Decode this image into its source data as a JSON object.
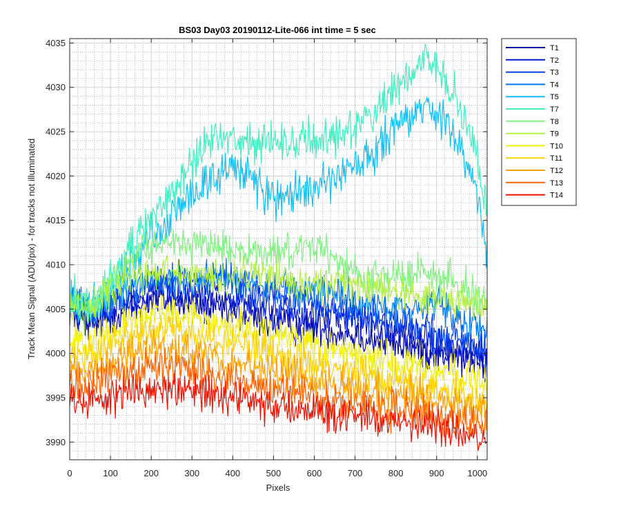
{
  "chart_data": {
    "type": "line",
    "title": "BS03 Day03 20190112-Lite-066 int time = 5 sec",
    "xlabel": "Pixels",
    "ylabel": "Track Mean Signal (ADU/pix) - for tracks not illuminated",
    "xlim": [
      0,
      1024
    ],
    "ylim": [
      3988,
      4035.5
    ],
    "x_ticks": [
      0,
      100,
      200,
      300,
      400,
      500,
      600,
      700,
      800,
      900,
      1000
    ],
    "y_ticks": [
      3990,
      3995,
      4000,
      4005,
      4010,
      4015,
      4020,
      4025,
      4030,
      4035
    ],
    "grid": "major and minor",
    "legend_position": "outside right",
    "series": [
      {
        "name": "T1",
        "color": "#0000a8",
        "x": [
          0,
          50,
          100,
          150,
          200,
          250,
          300,
          350,
          400,
          450,
          500,
          550,
          600,
          650,
          700,
          750,
          800,
          850,
          900,
          950,
          1000,
          1024
        ],
        "values": [
          4005,
          4003,
          4004,
          4005,
          4006,
          4006,
          4005.5,
          4005,
          4004.5,
          4004,
          4003.5,
          4003,
          4003,
          4002.5,
          4002,
          4001.5,
          4001,
          4000.5,
          4000,
          3999.5,
          3999,
          3998.5
        ]
      },
      {
        "name": "T2",
        "color": "#0018d0",
        "x": [
          0,
          50,
          100,
          150,
          200,
          250,
          300,
          350,
          400,
          450,
          500,
          550,
          600,
          650,
          700,
          750,
          800,
          850,
          900,
          950,
          1000,
          1024
        ],
        "values": [
          4005,
          4004,
          4005,
          4006,
          4007,
          4007,
          4006.5,
          4007,
          4006,
          4005.5,
          4005,
          4004.5,
          4004,
          4004,
          4003.5,
          4003,
          4002.5,
          4001.5,
          4001,
          4000.5,
          4000,
          3999.5
        ]
      },
      {
        "name": "T3",
        "color": "#0040f0",
        "x": [
          0,
          50,
          100,
          150,
          200,
          250,
          300,
          350,
          400,
          450,
          500,
          550,
          600,
          650,
          700,
          750,
          800,
          850,
          900,
          950,
          1000,
          1024
        ],
        "values": [
          4005.5,
          4004.5,
          4005.5,
          4007,
          4008,
          4008,
          4008,
          4009,
          4008,
          4007,
          4006.5,
          4006,
          4006,
          4005,
          4004.5,
          4004,
          4003.5,
          4003,
          4002,
          4001.5,
          4001,
          4000.5
        ]
      },
      {
        "name": "T4",
        "color": "#0078f0",
        "x": [
          0,
          50,
          100,
          150,
          200,
          250,
          300,
          350,
          400,
          450,
          500,
          550,
          600,
          650,
          700,
          750,
          800,
          850,
          900,
          950,
          1000,
          1024
        ],
        "values": [
          4006,
          4005,
          4006,
          4007.5,
          4008.5,
          4008,
          4008,
          4009,
          4008.5,
          4008,
          4007.5,
          4007,
          4007,
          4006.5,
          4006,
          4005.5,
          4005,
          4005,
          4006,
          4004,
          4003,
          4002.5
        ]
      },
      {
        "name": "T5",
        "color": "#10c0f8",
        "x": [
          0,
          50,
          100,
          150,
          200,
          250,
          300,
          350,
          400,
          450,
          500,
          550,
          600,
          650,
          700,
          750,
          800,
          850,
          880,
          900,
          950,
          1000,
          1024
        ],
        "values": [
          4006,
          4005,
          4007,
          4010,
          4013,
          4015.5,
          4018,
          4020,
          4021,
          4019.5,
          4018,
          4017.5,
          4018.5,
          4019.5,
          4021,
          4022.5,
          4025.5,
          4027,
          4028,
          4027,
          4024,
          4018,
          4010.5
        ]
      },
      {
        "name": "T7",
        "color": "#40f0c0",
        "x": [
          0,
          50,
          100,
          150,
          200,
          250,
          300,
          350,
          400,
          450,
          500,
          550,
          600,
          650,
          700,
          750,
          800,
          850,
          880,
          900,
          950,
          1000,
          1024
        ],
        "values": [
          4006,
          4005.5,
          4008,
          4012,
          4015,
          4018,
          4021.5,
          4024.5,
          4024.5,
          4023.5,
          4023.5,
          4024,
          4024,
          4024.5,
          4026,
          4027,
          4030.5,
          4032.5,
          4033.5,
          4032.5,
          4029,
          4022,
          4015
        ]
      },
      {
        "name": "T8",
        "color": "#80f080",
        "x": [
          0,
          50,
          100,
          150,
          200,
          250,
          300,
          350,
          400,
          450,
          500,
          550,
          600,
          650,
          700,
          750,
          800,
          850,
          900,
          950,
          1000,
          1024
        ],
        "values": [
          4006,
          4005.5,
          4008,
          4010.5,
          4012,
          4012,
          4012,
          4012.5,
          4012,
          4011.5,
          4011.5,
          4011.5,
          4012,
          4011,
          4009,
          4008.5,
          4008.5,
          4009,
          4009,
          4008,
          4006.5,
          4005.5
        ]
      },
      {
        "name": "T9",
        "color": "#b0f040",
        "x": [
          0,
          50,
          100,
          150,
          200,
          250,
          300,
          350,
          400,
          450,
          500,
          550,
          600,
          650,
          700,
          750,
          800,
          850,
          900,
          950,
          1000,
          1024
        ],
        "values": [
          4005,
          4004.5,
          4007,
          4008.5,
          4009,
          4009,
          4009,
          4009,
          4008.5,
          4008.5,
          4008.5,
          4008,
          4008,
          4008,
          4007.5,
          4007,
          4007,
          4006.5,
          4006,
          4006,
          4005.5,
          4005
        ]
      },
      {
        "name": "T10",
        "color": "#f0f000",
        "x": [
          0,
          50,
          100,
          150,
          200,
          250,
          300,
          350,
          400,
          450,
          500,
          550,
          600,
          650,
          700,
          750,
          800,
          850,
          900,
          950,
          1000,
          1024
        ],
        "values": [
          4001.5,
          4001,
          4002.5,
          4003.5,
          4004.5,
          4004.5,
          4004,
          4003.5,
          4003,
          4002.5,
          4002,
          4001.5,
          4001,
          4000.5,
          4000,
          3999.5,
          3999,
          3998.5,
          3998,
          3997.5,
          3997,
          3996.5
        ]
      },
      {
        "name": "T11",
        "color": "#ffd000",
        "x": [
          0,
          50,
          100,
          150,
          200,
          250,
          300,
          350,
          400,
          450,
          500,
          550,
          600,
          650,
          700,
          750,
          800,
          850,
          900,
          950,
          1000,
          1024
        ],
        "values": [
          4000,
          3999.5,
          4001,
          4002,
          4002.5,
          4002.5,
          4002,
          4001.5,
          4001,
          4000.5,
          4000,
          3999.5,
          3999,
          3998.5,
          3998,
          3997.5,
          3997,
          3996.5,
          3996,
          3995.5,
          3995,
          3994.5
        ]
      },
      {
        "name": "T12",
        "color": "#ffa000",
        "x": [
          0,
          50,
          100,
          150,
          200,
          250,
          300,
          350,
          400,
          450,
          500,
          550,
          600,
          650,
          700,
          750,
          800,
          850,
          900,
          950,
          1000,
          1024
        ],
        "values": [
          3998.5,
          3998,
          3999,
          4000,
          4000.5,
          4000.5,
          4000,
          3999.5,
          3999,
          3998.5,
          3998,
          3997.5,
          3997,
          3996.5,
          3996,
          3995.5,
          3995.5,
          3995,
          3994.5,
          3994,
          3993.5,
          3993
        ]
      },
      {
        "name": "T13",
        "color": "#ff6000",
        "x": [
          0,
          50,
          100,
          150,
          200,
          250,
          300,
          350,
          400,
          450,
          500,
          550,
          600,
          650,
          700,
          750,
          800,
          850,
          900,
          950,
          1000,
          1024
        ],
        "values": [
          3997,
          3996.5,
          3997.5,
          3998,
          3998.5,
          3998.5,
          3998,
          3997.5,
          3997,
          3996.5,
          3996,
          3995.5,
          3995,
          3994.5,
          3994.5,
          3994,
          3993.5,
          3993.5,
          3993,
          3992.5,
          3992,
          3992
        ]
      },
      {
        "name": "T14",
        "color": "#f01000",
        "x": [
          0,
          50,
          100,
          150,
          200,
          250,
          300,
          350,
          400,
          450,
          500,
          550,
          600,
          650,
          700,
          750,
          800,
          850,
          900,
          950,
          1000,
          1024
        ],
        "values": [
          3995,
          3994.5,
          3995,
          3995.5,
          3996,
          3996,
          3995.5,
          3995,
          3995,
          3994.5,
          3994,
          3993.5,
          3993.5,
          3993,
          3993,
          3992.5,
          3992.5,
          3992,
          3992,
          3991.5,
          3991,
          3991
        ]
      }
    ]
  }
}
